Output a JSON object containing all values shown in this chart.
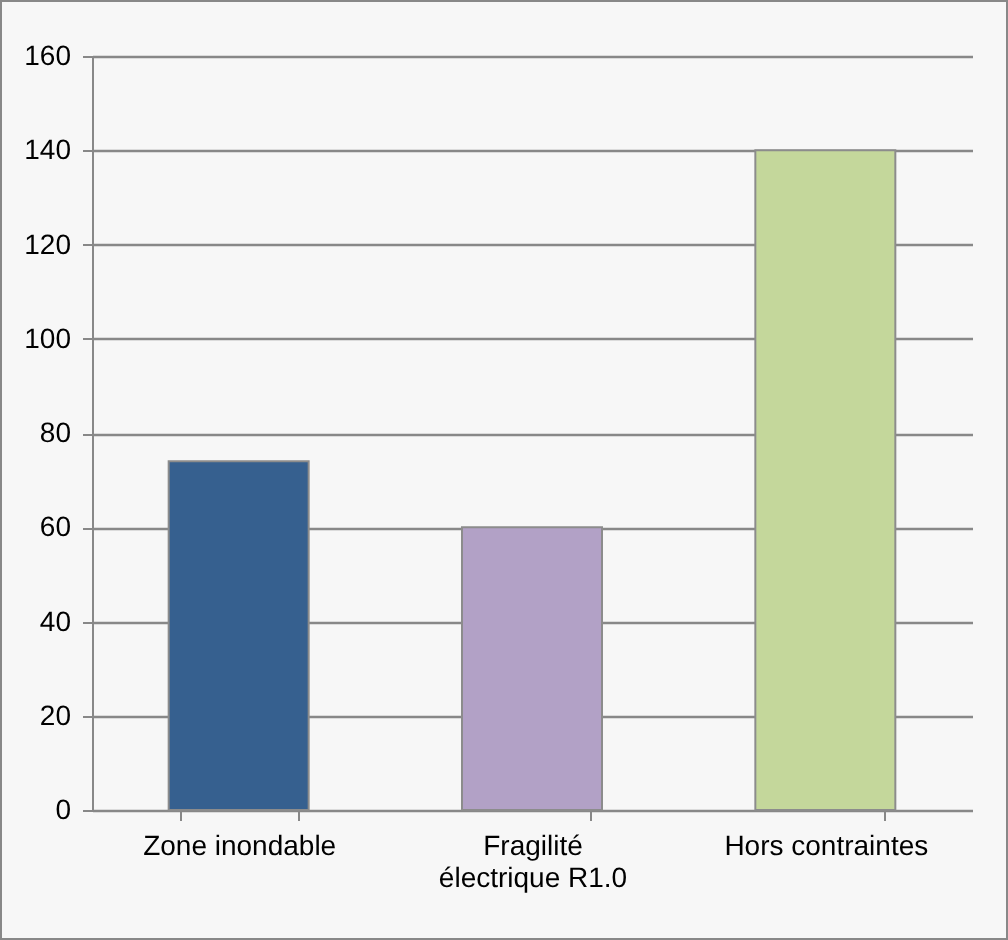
{
  "chart_data": {
    "type": "bar",
    "categories": [
      "Zone inondable",
      "Fragilité électrique R1.0",
      "Hors contraintes"
    ],
    "values": [
      74,
      60,
      140
    ],
    "colors": [
      "#36608f",
      "#b2a1c6",
      "#c4d79b"
    ],
    "ylim": [
      0,
      160
    ],
    "yticks": [
      0,
      20,
      40,
      60,
      80,
      100,
      120,
      140,
      160
    ],
    "grid": "y",
    "legend": false
  }
}
